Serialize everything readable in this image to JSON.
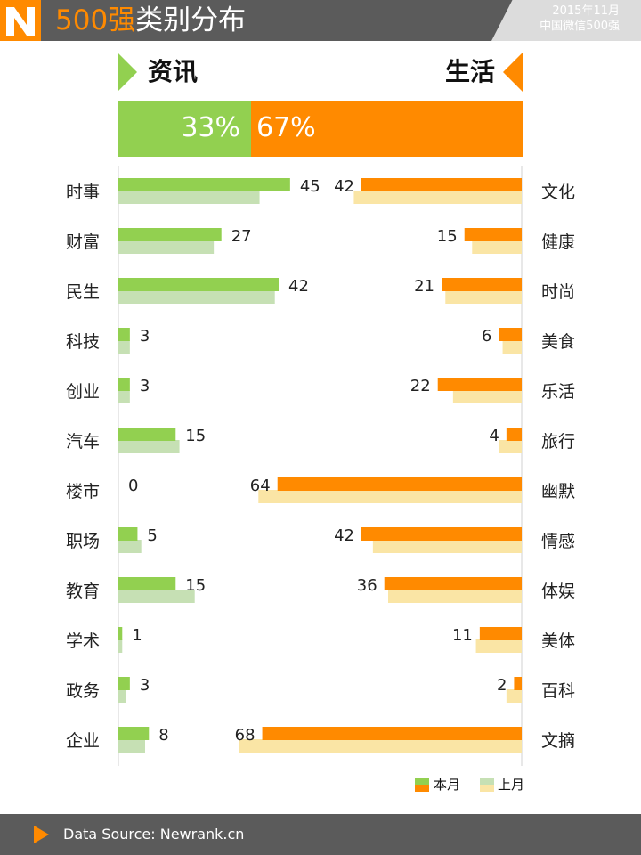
{
  "header": {
    "title_accent": "500强",
    "title_rest": "类别分布",
    "badge_line1": "2015年11月",
    "badge_line2": "中国微信500强",
    "colors": {
      "bar": "#5b5b5b",
      "accent": "#ff8a00"
    },
    "logo_icon": "newrank-logo-icon"
  },
  "sections": {
    "left": {
      "label": "资讯",
      "share": "33%",
      "share_value": 33,
      "color": "#92d050"
    },
    "right": {
      "label": "生活",
      "share": "67%",
      "share_value": 67,
      "color": "#ff8a00"
    }
  },
  "chart_data": {
    "type": "bar",
    "orientation": "horizontal-butterfly",
    "legend": [
      "本月",
      "上月"
    ],
    "legend_position": "bottom-right",
    "colors": {
      "left_current": "#92d050",
      "left_previous": "#c6e0b4",
      "right_current": "#ff8a00",
      "right_previous": "#fae5a5"
    },
    "xlim": [
      0,
      70
    ],
    "left": {
      "categories": [
        "时事",
        "财富",
        "民生",
        "科技",
        "创业",
        "汽车",
        "楼市",
        "职场",
        "教育",
        "学术",
        "政务",
        "企业"
      ],
      "current": [
        45,
        27,
        42,
        3,
        3,
        15,
        0,
        5,
        15,
        1,
        3,
        8
      ],
      "previous": [
        37,
        25,
        41,
        3,
        3,
        16,
        0,
        6,
        20,
        1,
        2,
        7
      ],
      "current_labels": [
        "45",
        "27",
        "42",
        "3",
        "3",
        "15",
        "0",
        "5",
        "15",
        "1",
        "3",
        "8"
      ]
    },
    "right": {
      "categories": [
        "文化",
        "健康",
        "时尚",
        "美食",
        "乐活",
        "旅行",
        "幽默",
        "情感",
        "体娱",
        "美体",
        "百科",
        "文摘"
      ],
      "current": [
        42,
        15,
        21,
        6,
        22,
        4,
        64,
        42,
        36,
        11,
        2,
        68
      ],
      "previous": [
        44,
        13,
        20,
        5,
        18,
        6,
        69,
        39,
        35,
        12,
        4,
        74
      ],
      "current_labels": [
        "42",
        "15",
        "21",
        "6",
        "22",
        "4",
        "64",
        "42",
        "36",
        "11",
        "2",
        "68"
      ]
    }
  },
  "footer": {
    "source": "Data Source: Newrank.cn",
    "arrow_icon": "play-arrow-icon"
  }
}
